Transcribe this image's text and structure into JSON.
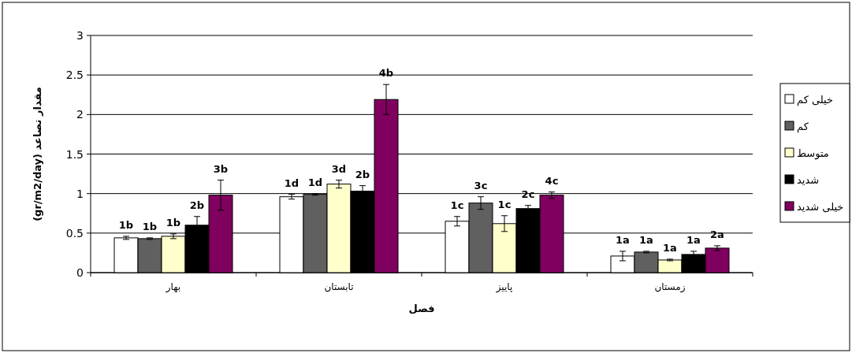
{
  "chart_data": {
    "type": "bar",
    "xlabel": "فصل",
    "ylabel": "مقدار تصاعد (gr/m2/day)",
    "categories": [
      "بهار",
      "تابستان",
      "پاییز",
      "زمستان"
    ],
    "series": [
      {
        "name": "خیلی کم",
        "color": "#ffffff",
        "values": [
          0.44,
          0.96,
          0.65,
          0.21
        ],
        "errors": [
          0.02,
          0.03,
          0.06,
          0.06
        ]
      },
      {
        "name": "کم",
        "color": "#606060",
        "values": [
          0.43,
          0.99,
          0.88,
          0.26
        ],
        "errors": [
          0.01,
          0.01,
          0.08,
          0.01
        ]
      },
      {
        "name": "متوسط",
        "color": "#ffffcc",
        "values": [
          0.46,
          1.12,
          0.62,
          0.16
        ],
        "errors": [
          0.03,
          0.05,
          0.1,
          0.01
        ]
      },
      {
        "name": "شدید",
        "color": "#000000",
        "values": [
          0.6,
          1.03,
          0.81,
          0.23
        ],
        "errors": [
          0.11,
          0.07,
          0.04,
          0.04
        ]
      },
      {
        "name": "خیلی شدید",
        "color": "#800060",
        "values": [
          0.98,
          2.19,
          0.98,
          0.31
        ],
        "errors": [
          0.19,
          0.19,
          0.04,
          0.03
        ]
      }
    ],
    "annotations": [
      "1b",
      "1b",
      "1b",
      "2b",
      "3b",
      "1d",
      "1d",
      "3d",
      "2b",
      "4b",
      "1c",
      "3c",
      "1c",
      "2c",
      "4c",
      "1a",
      "1a",
      "1a",
      "1a",
      "2a"
    ],
    "ylim": [
      0,
      3
    ],
    "yticks": [
      0,
      0.5,
      1,
      1.5,
      2,
      2.5,
      3
    ],
    "grid": "y",
    "legend": "right"
  }
}
